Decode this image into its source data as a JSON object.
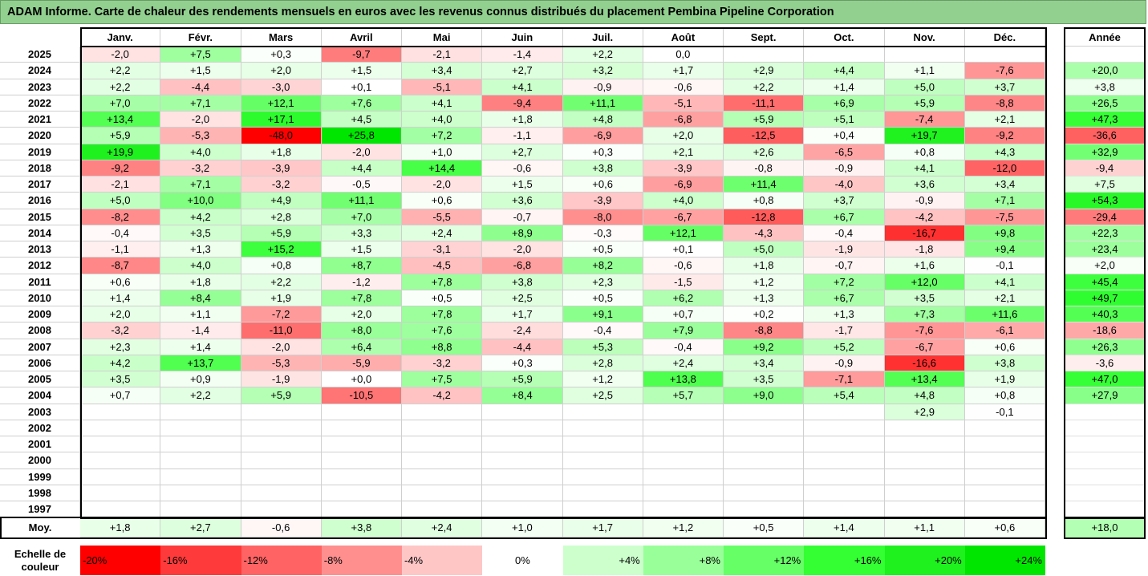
{
  "title": "ADAM Informe. Carte de chaleur des rendements mensuels en euros avec les revenus connus distribués du placement Pembina Pipeline Corporation",
  "chart_data": {
    "type": "heatmap",
    "title": "ADAM Informe. Carte de chaleur des rendements mensuels en euros avec les revenus connus distribués du placement Pembina Pipeline Corporation",
    "columns": [
      "Janv.",
      "Févr.",
      "Mars",
      "Avril",
      "Mai",
      "Juin",
      "Juil.",
      "Août",
      "Sept.",
      "Oct.",
      "Nov.",
      "Déc."
    ],
    "year_column_label": "Année",
    "rows": [
      {
        "year": "2025",
        "values": [
          "-2,0",
          "+7,5",
          "+0,3",
          "-9,7",
          "-2,1",
          "-1,4",
          "+2,2",
          "0,0",
          "",
          "",
          "",
          ""
        ],
        "annual": ""
      },
      {
        "year": "2024",
        "values": [
          "+2,2",
          "+1,5",
          "+2,0",
          "+1,5",
          "+3,4",
          "+2,7",
          "+3,2",
          "+1,7",
          "+2,9",
          "+4,4",
          "+1,1",
          "-7,6"
        ],
        "annual": "+20,0"
      },
      {
        "year": "2023",
        "values": [
          "+2,2",
          "-4,4",
          "-3,0",
          "+0,1",
          "-5,1",
          "+4,1",
          "-0,9",
          "-0,6",
          "+2,2",
          "+1,4",
          "+5,0",
          "+3,7"
        ],
        "annual": "+3,8"
      },
      {
        "year": "2022",
        "values": [
          "+7,0",
          "+7,1",
          "+12,1",
          "+7,6",
          "+4,1",
          "-9,4",
          "+11,1",
          "-5,1",
          "-11,1",
          "+6,9",
          "+5,9",
          "-8,8"
        ],
        "annual": "+26,5"
      },
      {
        "year": "2021",
        "values": [
          "+13,4",
          "-2,0",
          "+17,1",
          "+4,5",
          "+4,0",
          "+1,8",
          "+4,8",
          "-6,8",
          "+5,9",
          "+5,1",
          "-7,4",
          "+2,1"
        ],
        "annual": "+47,3"
      },
      {
        "year": "2020",
        "values": [
          "+5,9",
          "-5,3",
          "-48,0",
          "+25,8",
          "+7,2",
          "-1,1",
          "-6,9",
          "+2,0",
          "-12,5",
          "+0,4",
          "+19,7",
          "-9,2"
        ],
        "annual": "-36,6"
      },
      {
        "year": "2019",
        "values": [
          "+19,9",
          "+4,0",
          "+1,8",
          "-2,0",
          "+1,0",
          "+2,7",
          "+0,3",
          "+2,1",
          "+2,6",
          "-6,5",
          "+0,8",
          "+4,3"
        ],
        "annual": "+32,9"
      },
      {
        "year": "2018",
        "values": [
          "-9,2",
          "-3,2",
          "-3,9",
          "+4,4",
          "+14,4",
          "-0,6",
          "+3,8",
          "-3,9",
          "-0,8",
          "-0,9",
          "+4,1",
          "-12,0"
        ],
        "annual": "-9,4"
      },
      {
        "year": "2017",
        "values": [
          "-2,1",
          "+7,1",
          "-3,2",
          "-0,5",
          "-2,0",
          "+1,5",
          "+0,6",
          "-6,9",
          "+11,4",
          "-4,0",
          "+3,6",
          "+3,4"
        ],
        "annual": "+7,5"
      },
      {
        "year": "2016",
        "values": [
          "+5,0",
          "+10,0",
          "+4,9",
          "+11,1",
          "+0,6",
          "+3,6",
          "-3,9",
          "+4,0",
          "+0,8",
          "+3,7",
          "-0,9",
          "+7,1"
        ],
        "annual": "+54,3"
      },
      {
        "year": "2015",
        "values": [
          "-8,2",
          "+4,2",
          "+2,8",
          "+7,0",
          "-5,5",
          "-0,7",
          "-8,0",
          "-6,7",
          "-12,8",
          "+6,7",
          "-4,2",
          "-7,5"
        ],
        "annual": "-29,4"
      },
      {
        "year": "2014",
        "values": [
          "-0,4",
          "+3,5",
          "+5,9",
          "+3,3",
          "+2,4",
          "+8,9",
          "-0,3",
          "+12,1",
          "-4,3",
          "-0,4",
          "-16,7",
          "+9,8"
        ],
        "annual": "+22,3"
      },
      {
        "year": "2013",
        "values": [
          "-1,1",
          "+1,3",
          "+15,2",
          "+1,5",
          "-3,1",
          "-2,0",
          "+0,5",
          "+0,1",
          "+5,0",
          "-1,9",
          "-1,8",
          "+9,4"
        ],
        "annual": "+23,4"
      },
      {
        "year": "2012",
        "values": [
          "-8,7",
          "+4,0",
          "+0,8",
          "+8,7",
          "-4,5",
          "-6,8",
          "+8,2",
          "-0,6",
          "+1,8",
          "-0,7",
          "+1,6",
          "-0,1"
        ],
        "annual": "+2,0"
      },
      {
        "year": "2011",
        "values": [
          "+0,6",
          "+1,8",
          "+2,2",
          "-1,2",
          "+7,8",
          "+3,8",
          "+2,3",
          "-1,5",
          "+1,2",
          "+7,2",
          "+12,0",
          "+4,1"
        ],
        "annual": "+45,4"
      },
      {
        "year": "2010",
        "values": [
          "+1,4",
          "+8,4",
          "+1,9",
          "+7,8",
          "+0,5",
          "+2,5",
          "+0,5",
          "+6,2",
          "+1,3",
          "+6,7",
          "+3,5",
          "+2,1"
        ],
        "annual": "+49,7"
      },
      {
        "year": "2009",
        "values": [
          "+2,0",
          "+1,1",
          "-7,2",
          "+2,0",
          "+7,8",
          "+1,7",
          "+9,1",
          "+0,7",
          "+0,2",
          "+1,3",
          "+7,3",
          "+11,6"
        ],
        "annual": "+40,3"
      },
      {
        "year": "2008",
        "values": [
          "-3,2",
          "-1,4",
          "-11,0",
          "+8,0",
          "+7,6",
          "-2,4",
          "-0,4",
          "+7,9",
          "-8,8",
          "-1,7",
          "-7,6",
          "-6,1"
        ],
        "annual": "-18,6"
      },
      {
        "year": "2007",
        "values": [
          "+2,3",
          "+1,4",
          "-2,0",
          "+6,4",
          "+8,8",
          "-4,4",
          "+5,3",
          "-0,4",
          "+9,2",
          "+5,2",
          "-6,7",
          "+0,6"
        ],
        "annual": "+26,3"
      },
      {
        "year": "2006",
        "values": [
          "+4,2",
          "+13,7",
          "-5,3",
          "-5,9",
          "-3,2",
          "+0,3",
          "+2,8",
          "+2,4",
          "+3,4",
          "-0,9",
          "-16,6",
          "+3,8"
        ],
        "annual": "-3,6"
      },
      {
        "year": "2005",
        "values": [
          "+3,5",
          "+0,9",
          "-1,9",
          "+0,0",
          "+7,5",
          "+5,9",
          "+1,2",
          "+13,8",
          "+3,5",
          "-7,1",
          "+13,4",
          "+1,9"
        ],
        "annual": "+47,0"
      },
      {
        "year": "2004",
        "values": [
          "+0,7",
          "+2,2",
          "+5,9",
          "-10,5",
          "-4,2",
          "+8,4",
          "+2,5",
          "+5,7",
          "+9,0",
          "+5,4",
          "+4,8",
          "+0,8"
        ],
        "annual": "+27,9"
      },
      {
        "year": "2003",
        "values": [
          "",
          "",
          "",
          "",
          "",
          "",
          "",
          "",
          "",
          "",
          "+2,9",
          "-0,1"
        ],
        "annual": ""
      },
      {
        "year": "2002",
        "values": [
          "",
          "",
          "",
          "",
          "",
          "",
          "",
          "",
          "",
          "",
          "",
          ""
        ],
        "annual": ""
      },
      {
        "year": "2001",
        "values": [
          "",
          "",
          "",
          "",
          "",
          "",
          "",
          "",
          "",
          "",
          "",
          ""
        ],
        "annual": ""
      },
      {
        "year": "2000",
        "values": [
          "",
          "",
          "",
          "",
          "",
          "",
          "",
          "",
          "",
          "",
          "",
          ""
        ],
        "annual": ""
      },
      {
        "year": "1999",
        "values": [
          "",
          "",
          "",
          "",
          "",
          "",
          "",
          "",
          "",
          "",
          "",
          ""
        ],
        "annual": ""
      },
      {
        "year": "1998",
        "values": [
          "",
          "",
          "",
          "",
          "",
          "",
          "",
          "",
          "",
          "",
          "",
          ""
        ],
        "annual": ""
      },
      {
        "year": "1997",
        "values": [
          "",
          "",
          "",
          "",
          "",
          "",
          "",
          "",
          "",
          "",
          "",
          ""
        ],
        "annual": ""
      }
    ],
    "average": {
      "label": "Moy.",
      "values": [
        "+1,8",
        "+2,7",
        "-0,6",
        "+3,8",
        "+2,4",
        "+1,0",
        "+1,7",
        "+1,2",
        "+0,5",
        "+1,4",
        "+1,1",
        "+0,6"
      ],
      "annual": "+18,0"
    },
    "color_scale": {
      "label": "Echelle de couleur",
      "stops": [
        {
          "label": "-20%",
          "value": -20,
          "color": "#ff0000"
        },
        {
          "label": "-16%",
          "value": -16,
          "color": "#ff3a3a"
        },
        {
          "label": "-12%",
          "value": -12,
          "color": "#ff6363"
        },
        {
          "label": "-8%",
          "value": -8,
          "color": "#ff8f8f"
        },
        {
          "label": "-4%",
          "value": -4,
          "color": "#ffc6c6"
        },
        {
          "label": "0%",
          "value": 0,
          "color": "#ffffff"
        },
        {
          "label": "+4%",
          "value": 4,
          "color": "#ccffcc"
        },
        {
          "label": "+8%",
          "value": 8,
          "color": "#99ff99"
        },
        {
          "label": "+12%",
          "value": 12,
          "color": "#66ff66"
        },
        {
          "label": "+16%",
          "value": 16,
          "color": "#33ff33"
        },
        {
          "label": "+20%",
          "value": 20,
          "color": "#1ef11e"
        },
        {
          "label": "+24%",
          "value": 24,
          "color": "#00e600"
        }
      ]
    }
  }
}
